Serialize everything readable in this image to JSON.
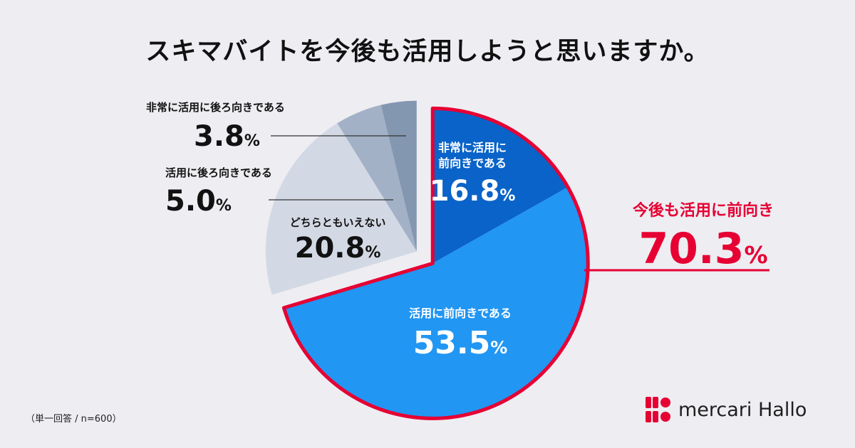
{
  "title": "スキマバイトを今後も活用しようと思いますか。",
  "note": "（単一回答 / n=600）",
  "brand": {
    "name": "mercari Hallo",
    "color": "#e60033"
  },
  "chart_data": {
    "type": "pie",
    "title": "スキマバイトを今後も活用しようと思いますか。",
    "categories": [
      "非常に活用に前向きである",
      "活用に前向きである",
      "どちらともいえない",
      "活用に後ろ向きである",
      "非常に活用に後ろ向きである"
    ],
    "values": [
      16.8,
      53.5,
      20.8,
      5.0,
      3.8
    ],
    "unit": "%",
    "slice_labels": [
      {
        "lines": [
          "非常に活用に",
          "前向きである"
        ],
        "value": "16.8",
        "unit": "%"
      },
      {
        "lines": [
          "活用に前向きである"
        ],
        "value": "53.5",
        "unit": "%"
      },
      {
        "lines": [
          "どちらともいえない"
        ],
        "value": "20.8",
        "unit": "%"
      },
      {
        "lines": [
          "活用に後ろ向きである"
        ],
        "value": "5.0",
        "unit": "%"
      },
      {
        "lines": [
          "非常に活用に後ろ向きである"
        ],
        "value": "3.8",
        "unit": "%"
      }
    ],
    "colors": [
      "#0a63c8",
      "#2196f3",
      "#d3d9e4",
      "#a3b1c6",
      "#8497b1"
    ],
    "highlight": {
      "label": "今後も活用に前向き",
      "value": "70.3",
      "unit": "%",
      "color": "#e60033"
    }
  }
}
